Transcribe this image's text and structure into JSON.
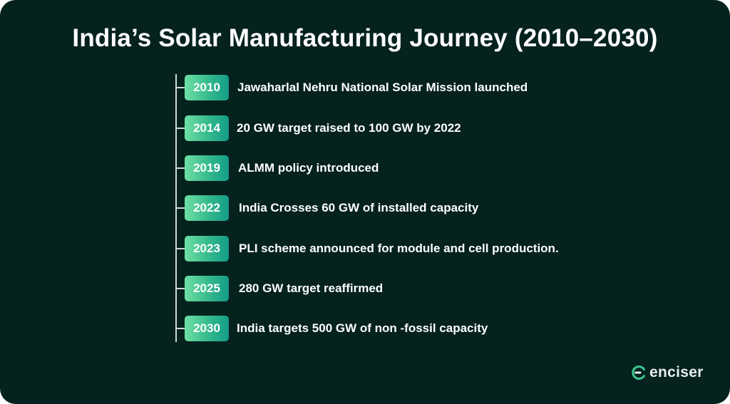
{
  "title": "India’s Solar Manufacturing Journey (2010–2030)",
  "timeline": [
    {
      "year": "2010",
      "event": "Jawaharlal Nehru National Solar Mission launched"
    },
    {
      "year": "2014",
      "event": "20 GW target raised to 100 GW by 2022"
    },
    {
      "year": "2019",
      "event": "ALMM policy introduced"
    },
    {
      "year": "2022",
      "event": "India Crosses 60 GW of installed capacity"
    },
    {
      "year": "2023",
      "event": "PLI scheme announced for module and cell production."
    },
    {
      "year": "2025",
      "event": "280 GW target reaffirmed"
    },
    {
      "year": "2030",
      "event": "India targets 500 GW of non -fossil capacity"
    }
  ],
  "brand": {
    "name": "enciser",
    "icon": "enciser-logo-icon"
  },
  "colors": {
    "background": "#05221f",
    "badge_start": "#6fe0a2",
    "badge_end": "#139c86",
    "axis": "#cfd8d6",
    "logo_accent": "#3cc78f"
  }
}
